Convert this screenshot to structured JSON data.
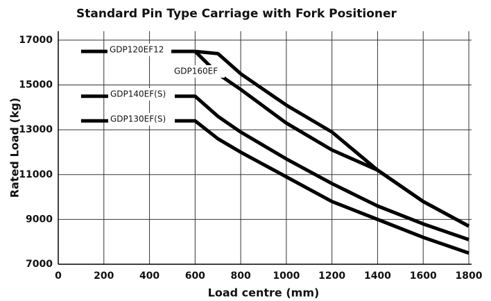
{
  "chart_data": {
    "type": "line",
    "title": "Standard Pin Type Carriage with Fork Positioner",
    "x_label": "Load centre (mm)",
    "y_label": "Rated Load (kg)",
    "x": [
      100,
      600,
      700,
      800,
      1000,
      1200,
      1400,
      1600,
      1800
    ],
    "series": [
      {
        "name": "GDP120EF12",
        "color": "#000000",
        "values": [
          16500,
          16500,
          16400,
          15500,
          14100,
          12900,
          11200,
          9800,
          8700
        ]
      },
      {
        "name": "GDP160EF",
        "color": "#000000",
        "values": [
          null,
          16500,
          15500,
          14800,
          13300,
          12100,
          11200,
          9800,
          8700
        ]
      },
      {
        "name": "GDP140EF(S)",
        "color": "#000000",
        "values": [
          14500,
          14500,
          13600,
          12900,
          11700,
          10600,
          9600,
          8800,
          8100
        ]
      },
      {
        "name": "GDP130EF(S)",
        "color": "#000000",
        "values": [
          13400,
          13400,
          12600,
          12000,
          10900,
          9800,
          9000,
          8200,
          7500
        ]
      }
    ],
    "xlim": [
      0,
      1800
    ],
    "ylim": [
      7000,
      17400
    ],
    "xticks": [
      0,
      200,
      400,
      600,
      800,
      1000,
      1200,
      1400,
      1600,
      1800
    ],
    "yticks": [
      7000,
      9000,
      11000,
      13000,
      15000,
      17000
    ],
    "grid": true
  }
}
